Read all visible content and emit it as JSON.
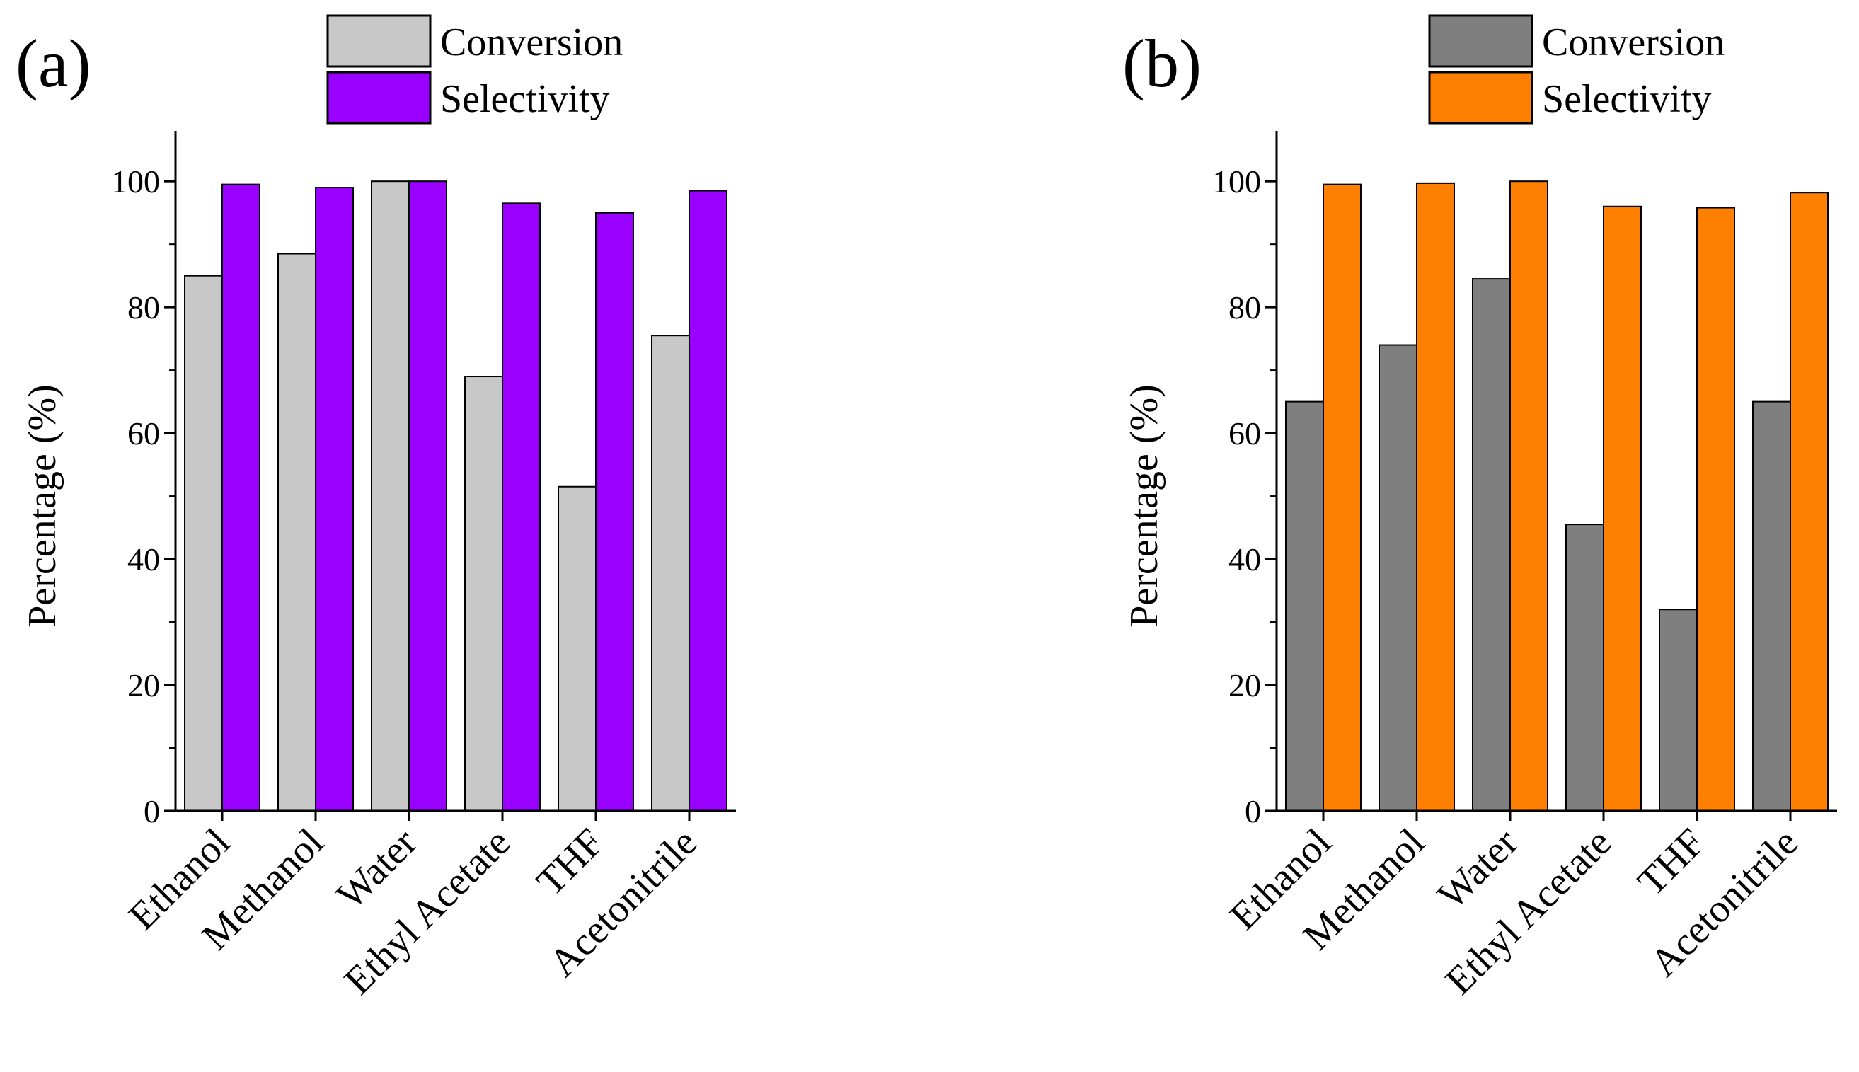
{
  "chart_data": [
    {
      "type": "bar",
      "panel_label": "(a)",
      "categories": [
        "Ethanol",
        "Methanol",
        "Water",
        "Ethyl Acetate",
        "THF",
        "Acetonitrile"
      ],
      "series": [
        {
          "name": "Conversion",
          "color": "#c8c8c8",
          "values": [
            85,
            88.5,
            100,
            69,
            51.5,
            75.5
          ]
        },
        {
          "name": "Selectivity",
          "color": "#9900ff",
          "values": [
            99.5,
            99,
            100,
            96.5,
            95,
            98.5
          ]
        }
      ],
      "ylabel": "Percentage (%)",
      "xlabel": "",
      "ylim": [
        0,
        108
      ],
      "yticks": [
        0,
        20,
        40,
        60,
        80,
        100
      ],
      "ytick_labels": [
        "0",
        "20",
        "40",
        "60",
        "80",
        "100"
      ],
      "legend": "top-center"
    },
    {
      "type": "bar",
      "panel_label": "(b)",
      "categories": [
        "Ethanol",
        "Methanol",
        "Water",
        "Ethyl Acetate",
        "THF",
        "Acetonitrile"
      ],
      "series": [
        {
          "name": "Conversion",
          "color": "#7f7f7f",
          "values": [
            65,
            74,
            84.5,
            45.5,
            32,
            65
          ]
        },
        {
          "name": "Selectivity",
          "color": "#ff8000",
          "values": [
            99.5,
            99.7,
            100,
            96,
            95.8,
            98.2
          ]
        }
      ],
      "ylabel": "Percentage (%)",
      "xlabel": "",
      "ylim": [
        0,
        108
      ],
      "yticks": [
        0,
        20,
        40,
        60,
        80,
        100
      ],
      "ytick_labels": [
        "0",
        "20",
        "40",
        "60",
        "80",
        "100"
      ],
      "legend": "top-center"
    }
  ]
}
